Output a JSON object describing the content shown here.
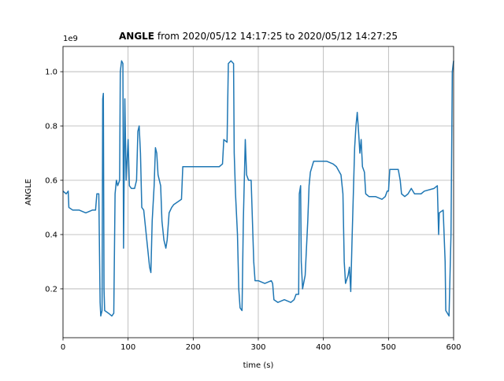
{
  "chart_data": {
    "type": "line",
    "title": {
      "name": "ANGLE",
      "range": "from 2020/05/12 14:17:25 to 2020/05/12 14:27:25"
    },
    "xlabel": "time (s)",
    "ylabel": "ANGLE",
    "offset_text": "1e9",
    "color": "#1f77b4",
    "grid": true,
    "xlim": [
      0,
      600
    ],
    "xticks": [
      0,
      100,
      200,
      300,
      400,
      500,
      600
    ],
    "ylim": [
      0.02,
      1.093
    ],
    "yticks": [
      0.2,
      0.4,
      0.6,
      {
        "value": 1,
        "label": "1.0"
      },
      0.8
    ],
    "x": [
      0,
      5,
      8,
      9,
      15,
      25,
      35,
      45,
      50,
      52,
      55,
      57,
      58,
      60,
      61,
      62,
      63,
      64,
      70,
      75,
      78,
      80,
      82,
      84,
      87,
      88,
      90,
      92,
      93,
      95,
      97,
      100,
      102,
      105,
      110,
      113,
      115,
      117,
      119,
      121,
      124,
      127,
      130,
      133,
      135,
      137,
      140,
      142,
      144,
      146,
      150,
      152,
      155,
      158,
      160,
      163,
      167,
      170,
      182,
      184,
      190,
      200,
      210,
      220,
      230,
      240,
      245,
      247,
      252,
      254,
      258,
      262,
      263,
      265,
      268,
      270,
      272,
      275,
      277,
      280,
      282,
      285,
      289,
      291,
      293,
      295,
      300,
      310,
      320,
      322,
      324,
      330,
      340,
      350,
      355,
      358,
      362,
      363,
      365,
      366,
      368,
      372,
      374,
      376,
      378,
      380,
      385,
      395,
      405,
      415,
      420,
      427,
      430,
      432,
      434,
      438,
      440,
      442,
      444,
      446,
      448,
      450,
      452,
      454,
      456,
      458,
      460,
      463,
      465,
      470,
      480,
      490,
      495,
      498,
      500,
      502,
      508,
      515,
      518,
      520,
      525,
      530,
      535,
      540,
      550,
      555,
      570,
      575,
      577,
      578,
      584,
      587,
      588,
      593,
      596,
      598,
      600
    ],
    "values": [
      0.56,
      0.55,
      0.56,
      0.5,
      0.49,
      0.49,
      0.48,
      0.49,
      0.49,
      0.55,
      0.55,
      0.15,
      0.1,
      0.12,
      0.9,
      0.92,
      0.2,
      0.12,
      0.11,
      0.1,
      0.11,
      0.55,
      0.6,
      0.58,
      0.6,
      1.0,
      1.04,
      1.03,
      0.35,
      0.9,
      0.6,
      0.75,
      0.58,
      0.57,
      0.57,
      0.6,
      0.78,
      0.8,
      0.7,
      0.5,
      0.49,
      0.42,
      0.35,
      0.28,
      0.26,
      0.45,
      0.58,
      0.72,
      0.7,
      0.62,
      0.58,
      0.45,
      0.38,
      0.35,
      0.38,
      0.48,
      0.5,
      0.51,
      0.53,
      0.65,
      0.65,
      0.65,
      0.65,
      0.65,
      0.65,
      0.65,
      0.66,
      0.75,
      0.74,
      1.03,
      1.04,
      1.03,
      0.7,
      0.55,
      0.4,
      0.2,
      0.13,
      0.12,
      0.45,
      0.75,
      0.62,
      0.6,
      0.6,
      0.45,
      0.3,
      0.23,
      0.23,
      0.22,
      0.23,
      0.22,
      0.16,
      0.15,
      0.16,
      0.15,
      0.16,
      0.18,
      0.18,
      0.55,
      0.58,
      0.3,
      0.2,
      0.25,
      0.35,
      0.45,
      0.58,
      0.63,
      0.67,
      0.67,
      0.67,
      0.66,
      0.65,
      0.62,
      0.55,
      0.3,
      0.22,
      0.25,
      0.28,
      0.19,
      0.38,
      0.55,
      0.72,
      0.8,
      0.85,
      0.78,
      0.7,
      0.75,
      0.65,
      0.63,
      0.55,
      0.54,
      0.54,
      0.53,
      0.54,
      0.56,
      0.56,
      0.64,
      0.64,
      0.64,
      0.6,
      0.55,
      0.54,
      0.55,
      0.57,
      0.55,
      0.55,
      0.56,
      0.57,
      0.58,
      0.4,
      0.48,
      0.49,
      0.3,
      0.12,
      0.1,
      0.4,
      1.0,
      1.04
    ]
  }
}
